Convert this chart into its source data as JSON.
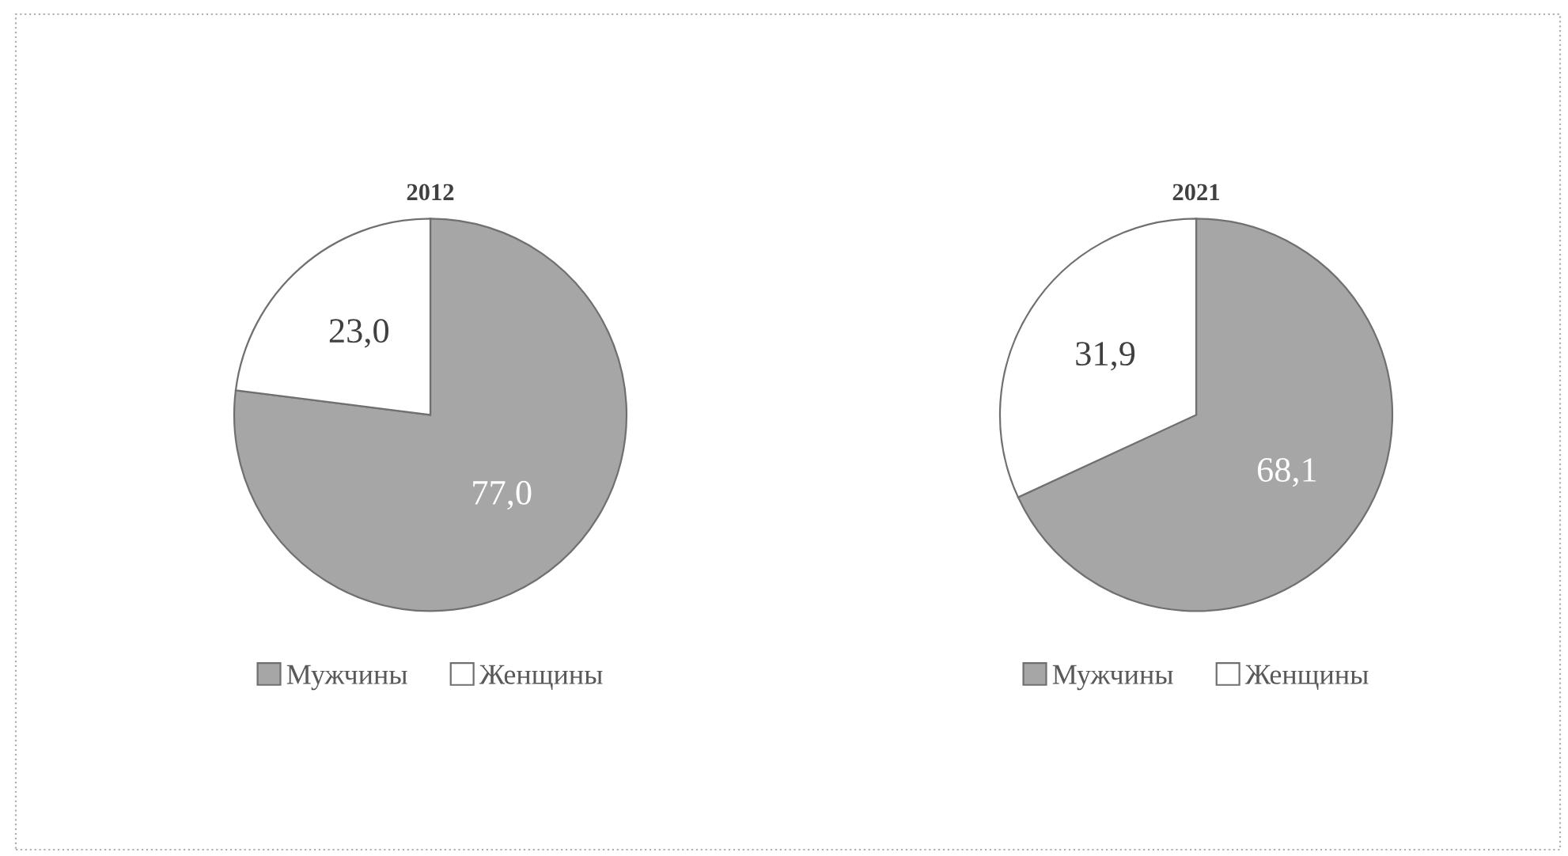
{
  "chart_data": [
    {
      "type": "pie",
      "title": "2012",
      "categories": [
        "Мужчины",
        "Женщины"
      ],
      "values": [
        77.0,
        23.0
      ],
      "colors": [
        "#a6a6a6",
        "#ffffff"
      ],
      "value_labels": [
        "77,0",
        "23,0"
      ],
      "legend": "bottom"
    },
    {
      "type": "pie",
      "title": "2021",
      "categories": [
        "Мужчины",
        "Женщины"
      ],
      "values": [
        68.1,
        31.9
      ],
      "colors": [
        "#a6a6a6",
        "#ffffff"
      ],
      "value_labels": [
        "68,1",
        "31,9"
      ],
      "legend": "bottom"
    }
  ]
}
